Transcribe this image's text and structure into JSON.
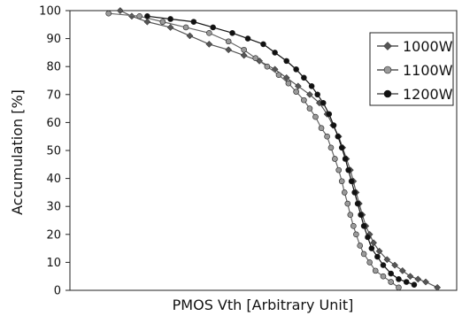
{
  "chart_data": {
    "type": "line",
    "xlabel": "PMOS Vth [Arbitrary Unit]",
    "ylabel": "Accumulation [%]",
    "ylim": [
      0,
      100
    ],
    "yticks": [
      0,
      10,
      20,
      30,
      40,
      50,
      60,
      70,
      80,
      90,
      100
    ],
    "xlim": [
      0,
      100
    ],
    "x_tick_labels": "none",
    "grid": false,
    "legend_position": "top-right",
    "series": [
      {
        "name": "1000W",
        "marker": "diamond",
        "color": "#555555",
        "x": [
          13,
          16,
          20,
          26,
          31,
          36,
          41,
          45,
          49,
          53,
          56,
          59,
          62,
          64.5,
          66.5,
          68,
          69.5,
          70.5,
          71.5,
          72.5,
          73.3,
          74,
          74.8,
          75.6,
          76.5,
          77.5,
          78.5,
          80,
          82,
          84,
          86,
          88,
          90,
          92,
          95
        ],
        "y": [
          100,
          98,
          96,
          94,
          91,
          88,
          86,
          84,
          82,
          79,
          76,
          73,
          70,
          67,
          63,
          59,
          55,
          51,
          47,
          43,
          39,
          35,
          31,
          27,
          23,
          20,
          17,
          14,
          11,
          9,
          7,
          5,
          4,
          3,
          1
        ]
      },
      {
        "name": "1100W",
        "marker": "circle",
        "color": "#9a9a9a",
        "x": [
          10,
          18,
          24,
          30,
          36,
          41,
          45,
          48,
          51,
          54,
          56.5,
          58.5,
          60.5,
          62,
          63.5,
          65,
          66.5,
          67.5,
          68.5,
          69.5,
          70.3,
          71,
          71.8,
          72.5,
          73.3,
          74,
          75,
          76,
          77.5,
          79,
          81,
          83,
          85
        ],
        "y": [
          99,
          98,
          96,
          94,
          92,
          89,
          86,
          83,
          80,
          77,
          74,
          71,
          68,
          65,
          62,
          58,
          55,
          51,
          47,
          43,
          39,
          35,
          31,
          27,
          23,
          20,
          16,
          13,
          10,
          7,
          5,
          3,
          1
        ]
      },
      {
        "name": "1200W",
        "marker": "circle",
        "color": "#111111",
        "x": [
          20,
          26,
          32,
          37,
          42,
          46,
          50,
          53,
          56,
          58.5,
          60.5,
          62.5,
          64,
          65.5,
          67,
          68.2,
          69.3,
          70.3,
          71.2,
          72,
          72.8,
          73.6,
          74.4,
          75.2,
          76,
          77,
          78,
          79.5,
          81,
          83,
          85,
          87,
          89
        ],
        "y": [
          98,
          97,
          96,
          94,
          92,
          90,
          88,
          85,
          82,
          79,
          76,
          73,
          70,
          67,
          63,
          59,
          55,
          51,
          47,
          43,
          39,
          35,
          31,
          27,
          23,
          19,
          15,
          12,
          9,
          6,
          4,
          3,
          2
        ]
      }
    ]
  }
}
